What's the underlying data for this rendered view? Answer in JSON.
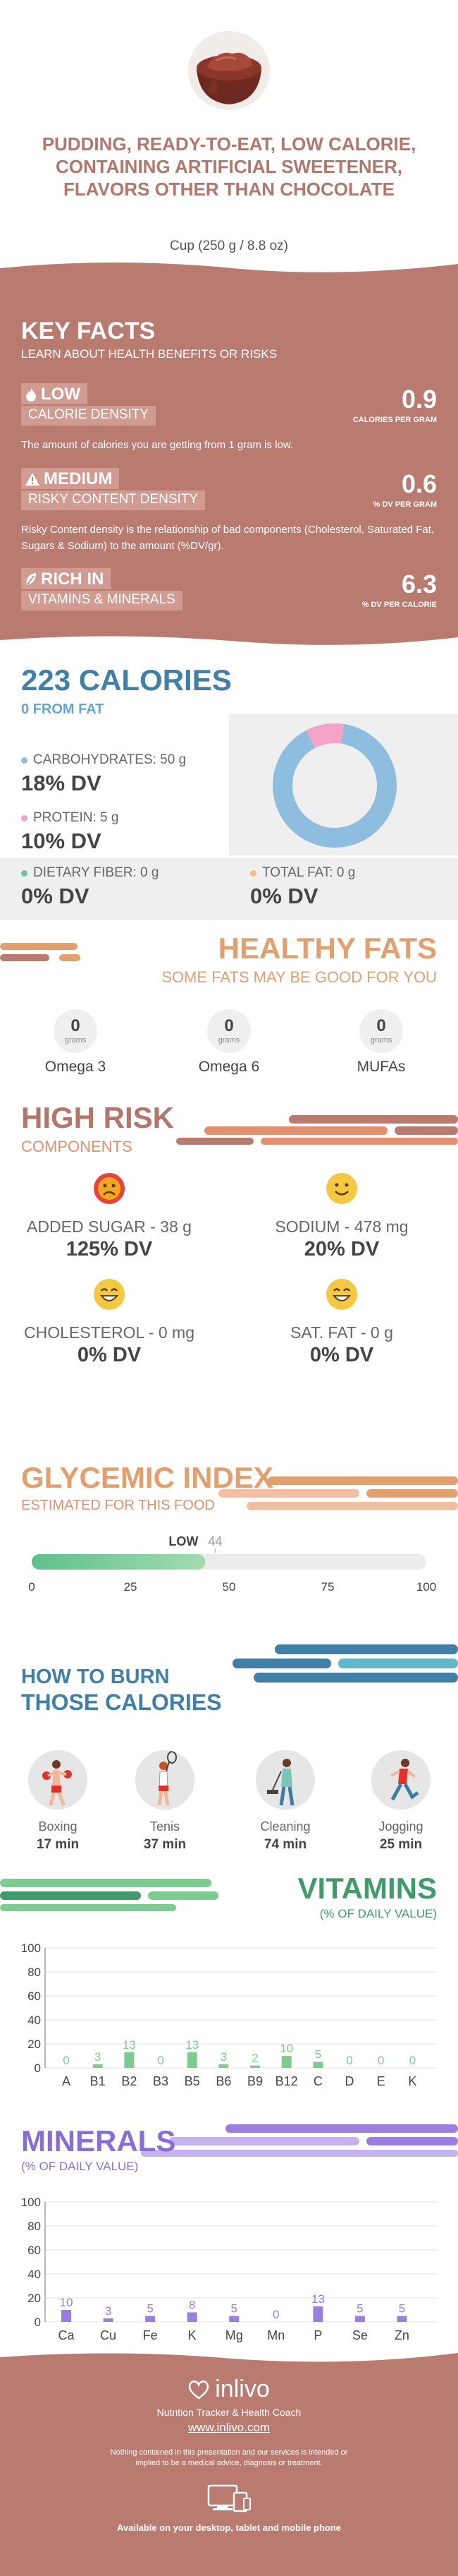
{
  "header": {
    "title": "PUDDING, READY-TO-EAT, LOW CALORIE, CONTAINING ARTIFICIAL SWEETENER, FLAVORS OTHER THAN CHOCOLATE",
    "serving": "Cup (250 g / 8.8 oz)"
  },
  "key_facts": {
    "title": "KEY FACTS",
    "subtitle": "LEARN ABOUT HEALTH BENEFITS OR RISKS",
    "calorie_density": {
      "level": "LOW",
      "label": "CALORIE DENSITY",
      "value": "0.9",
      "unit": "CALORIES PER GRAM",
      "description": "The amount of calories you are getting from 1 gram is low."
    },
    "risky_content": {
      "level": "MEDIUM",
      "label": "RISKY CONTENT DENSITY",
      "value": "0.6",
      "unit": "% DV PER GRAM",
      "description": "Risky Content density is the relationship of bad components (Cholesterol, Saturated Fat, Sugars & Sodium) to the amount (%DV/gr)."
    },
    "vitamins_minerals": {
      "level": "RICH IN",
      "label": "VITAMINS & MINERALS",
      "value": "6.3",
      "unit": "% DV PER CALORIE"
    }
  },
  "calories": {
    "title": "223 CALORIES",
    "from_fat": "0 FROM FAT",
    "carbs": {
      "label": "CARBOHYDRATES: 50 g",
      "dv": "18% DV",
      "color": "#8fbde0"
    },
    "protein": {
      "label": "PROTEIN: 5 g",
      "dv": "10% DV",
      "color": "#f5a3c7"
    },
    "fiber": {
      "label": "DIETARY FIBER: 0 g",
      "dv": "0% DV",
      "color": "#6cc4a4"
    },
    "fat": {
      "label": "TOTAL FAT: 0 g",
      "dv": "0% DV",
      "color": "#f2c27c"
    },
    "donut": [
      {
        "name": "carbs",
        "value": 90,
        "color": "#8fbde0"
      },
      {
        "name": "protein",
        "value": 10,
        "color": "#f5a3c7"
      }
    ]
  },
  "healthy_fats": {
    "title": "HEALTHY FATS",
    "subtitle": "SOME FATS MAY BE GOOD FOR YOU",
    "items": [
      {
        "value": "0",
        "unit": "grams",
        "name": "Omega 3"
      },
      {
        "value": "0",
        "unit": "grams",
        "name": "Omega 6"
      },
      {
        "value": "0",
        "unit": "grams",
        "name": "MUFAs"
      }
    ]
  },
  "high_risk": {
    "title": "HIGH RISK",
    "subtitle": "COMPONENTS",
    "items": [
      {
        "label": "ADDED SUGAR - 38 g",
        "dv": "125% DV",
        "face": "sad",
        "color": "#e8423a"
      },
      {
        "label": "SODIUM - 478 mg",
        "dv": "20% DV",
        "face": "smile",
        "color": "#f5c842"
      },
      {
        "label": "CHOLESTEROL - 0 mg",
        "dv": "0% DV",
        "face": "grin",
        "color": "#f5c842"
      },
      {
        "label": "SAT. FAT - 0 g",
        "dv": "0% DV",
        "face": "grin",
        "color": "#f5c842"
      }
    ]
  },
  "glycemic": {
    "title": "GLYCEMIC INDEX",
    "subtitle": "ESTIMATED FOR THIS FOOD",
    "level": "LOW",
    "value": 44,
    "value_label": "44",
    "ticks": [
      "0",
      "25",
      "50",
      "75",
      "100"
    ]
  },
  "burn": {
    "title_line1": "HOW TO BURN",
    "title_line2": "THOSE CALORIES",
    "activities": [
      {
        "name": "Boxing",
        "minutes": "17 min",
        "icon": "boxing-icon"
      },
      {
        "name": "Tenis",
        "minutes": "37 min",
        "icon": "tennis-icon"
      },
      {
        "name": "Cleaning",
        "minutes": "74 min",
        "icon": "cleaning-icon"
      },
      {
        "name": "Jogging",
        "minutes": "25 min",
        "icon": "jogging-icon"
      }
    ]
  },
  "chart_data": [
    {
      "type": "bar",
      "title": "VITAMINS",
      "subtitle": "(% OF DAILY VALUE)",
      "categories": [
        "A",
        "B1",
        "B2",
        "B3",
        "B5",
        "B6",
        "B9",
        "B12",
        "C",
        "D",
        "E",
        "K"
      ],
      "values": [
        0,
        3,
        13,
        0,
        13,
        3,
        2,
        10,
        5,
        0,
        0,
        0
      ],
      "ylim": [
        0,
        100
      ],
      "yticks": [
        "0",
        "20",
        "40",
        "60",
        "80",
        "100"
      ],
      "color": "#7ccb8f"
    },
    {
      "type": "bar",
      "title": "MINERALS",
      "subtitle": "(% OF DAILY VALUE)",
      "categories": [
        "Ca",
        "Cu",
        "Fe",
        "K",
        "Mg",
        "Mn",
        "P",
        "Se",
        "Zn"
      ],
      "values": [
        10,
        3,
        5,
        8,
        5,
        0,
        13,
        5,
        5
      ],
      "ylim": [
        0,
        100
      ],
      "yticks": [
        "0",
        "20",
        "40",
        "60",
        "80",
        "100"
      ],
      "color": "#9a7ee0"
    }
  ],
  "footer": {
    "brand": "inlivo",
    "tagline": "Nutrition Tracker & Health Coach",
    "url": "www.inlivo.com",
    "disclaimer": "Nothing contained in this presentation and our services is intended or implied to be a medical advice, diagnosis or treatment.",
    "available": "Available on your desktop, tablet and mobile phone"
  }
}
